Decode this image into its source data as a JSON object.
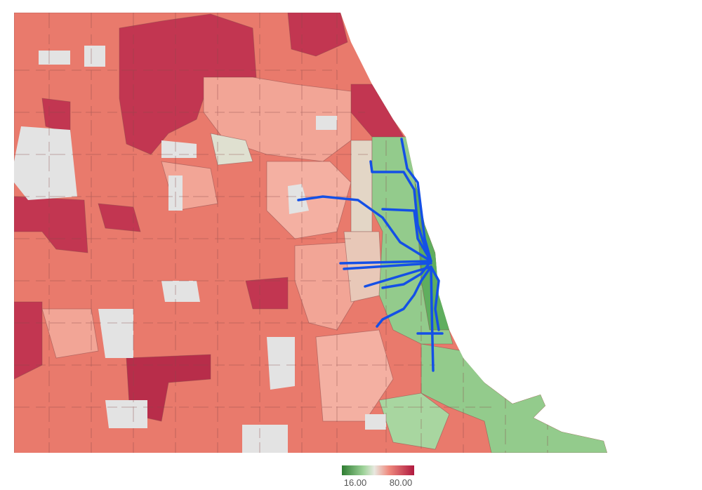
{
  "legend": {
    "min_label": "16.00",
    "max_label": "80.00"
  }
}
